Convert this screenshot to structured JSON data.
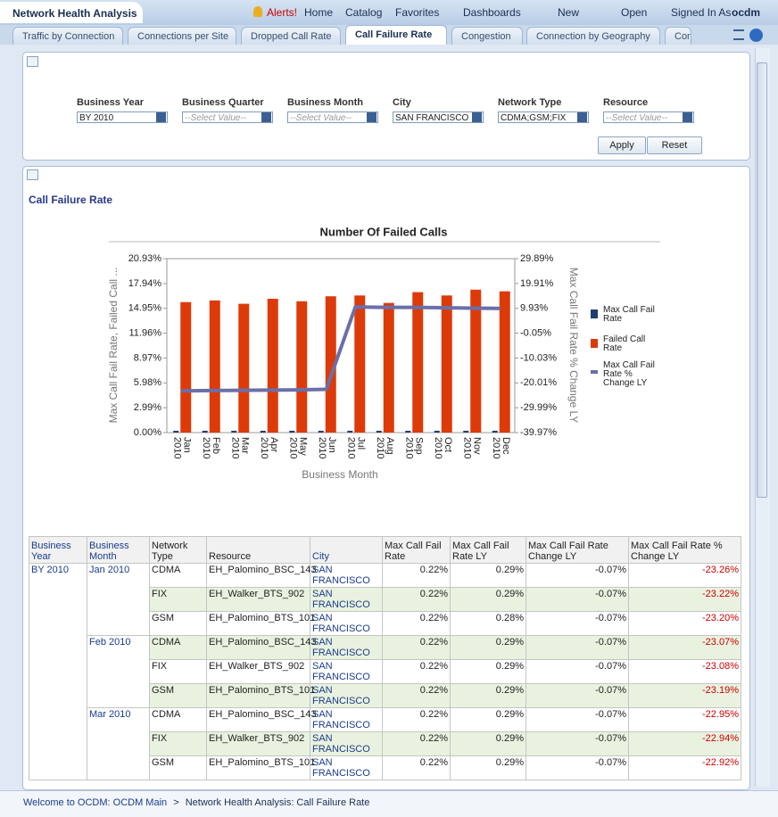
{
  "header": {
    "title": "Network Health Analysis",
    "alerts": "Alerts!",
    "menu": [
      "Home",
      "Catalog",
      "Favorites",
      "Dashboards",
      "New",
      "Open"
    ],
    "signed_in_label": "Signed In As",
    "user": "ocdm"
  },
  "tabs": [
    "Traffic by Connection",
    "Connections per Site",
    "Dropped Call Rate",
    "Call Failure Rate",
    "Congestion",
    "Connection by Geography",
    "Con"
  ],
  "active_tab": 3,
  "filters": [
    {
      "label": "Business Year",
      "value": "BY 2010"
    },
    {
      "label": "Business Quarter",
      "value": "--Select Value--"
    },
    {
      "label": "Business Month",
      "value": "--Select Value--"
    },
    {
      "label": "City",
      "value": "SAN FRANCISCO"
    },
    {
      "label": "Network Type",
      "value": "CDMA;GSM;FIX"
    },
    {
      "label": "Resource",
      "value": "--Select Value--"
    }
  ],
  "buttons": [
    "Apply",
    "Reset"
  ],
  "section_title": "Call Failure Rate",
  "chart_data": {
    "type": "bar",
    "title": "Number Of Failed Calls",
    "y_label": "Max Call Fail Rate, Failed  Call ...",
    "y2_label": "Max Call Fail Rate % Change LY",
    "x_label": "Business Month",
    "categories": [
      "Jan 2010",
      "Feb 2010",
      "Mar 2010",
      "Apr 2010",
      "May 2010",
      "Jun 2010",
      "Jul 2010",
      "Aug 2010",
      "Sep 2010",
      "Oct 2010",
      "Nov 2010",
      "Dec 2010"
    ],
    "ylim": [
      0,
      20.93
    ],
    "yticks": [
      {
        "value": 0,
        "label": "0.00%"
      },
      {
        "value": 2.99,
        "label": "2.99%"
      },
      {
        "value": 5.98,
        "label": "5.98%"
      },
      {
        "value": 8.97,
        "label": "8.97%"
      },
      {
        "value": 11.96,
        "label": "11.96%"
      },
      {
        "value": 14.95,
        "label": "14.95%"
      },
      {
        "value": 17.94,
        "label": "17.94%"
      },
      {
        "value": 20.93,
        "label": "20.93%"
      }
    ],
    "y2lim": [
      -39.97,
      29.89
    ],
    "y2ticks": [
      {
        "value": -39.97,
        "label": "-39.97%"
      },
      {
        "value": -29.99,
        "label": "-29.99%"
      },
      {
        "value": -20.01,
        "label": "-20.01%"
      },
      {
        "value": -10.03,
        "label": "-10.03%"
      },
      {
        "value": -0.05,
        "label": "-0.05%"
      },
      {
        "value": 9.93,
        "label": "9.93%"
      },
      {
        "value": 19.91,
        "label": "19.91%"
      },
      {
        "value": 29.89,
        "label": "29.89%"
      }
    ],
    "grid": false,
    "legend": "right",
    "series": [
      {
        "name": "Max Call Fail Rate",
        "color": "#1f3f73",
        "type": "bar",
        "values": [
          0.22,
          0.22,
          0.22,
          0.22,
          0.22,
          0.22,
          0.22,
          0.22,
          0.22,
          0.22,
          0.22,
          0.22
        ]
      },
      {
        "name": "Failed Call Rate",
        "color": "#dd3a0a",
        "type": "bar",
        "values": [
          15.7,
          15.9,
          15.5,
          16.1,
          15.8,
          16.4,
          16.5,
          15.6,
          16.9,
          16.5,
          17.2,
          17.0
        ]
      },
      {
        "name": "Max Call Fail Rate % Change LY",
        "color": "#6b6fa8",
        "type": "line",
        "axis": "y2",
        "values": [
          -23.2,
          -23.1,
          -23.0,
          -22.9,
          -22.8,
          -22.6,
          10.5,
          10.3,
          10.3,
          10.2,
          10.0,
          9.9
        ]
      }
    ]
  },
  "table": {
    "columns": [
      "Business Year",
      "Business Month",
      "Network Type",
      "Resource",
      "City",
      "Max Call Fail Rate",
      "Max Call Fail Rate LY",
      "Max Call Fail Rate Change LY",
      "Max Call Fail Rate % Change LY"
    ],
    "year": "BY 2010",
    "months": [
      {
        "month": "Jan 2010",
        "rows": [
          [
            "CDMA",
            "EH_Palomino_BSC_143",
            "SAN FRANCISCO",
            "0.22%",
            "0.29%",
            "-0.07%",
            "-23.26%"
          ],
          [
            "FIX",
            "EH_Walker_BTS_902",
            "SAN FRANCISCO",
            "0.22%",
            "0.29%",
            "-0.07%",
            "-23.22%"
          ],
          [
            "GSM",
            "EH_Palomino_BTS_101",
            "SAN FRANCISCO",
            "0.22%",
            "0.28%",
            "-0.07%",
            "-23.20%"
          ]
        ]
      },
      {
        "month": "Feb 2010",
        "rows": [
          [
            "CDMA",
            "EH_Palomino_BSC_143",
            "SAN FRANCISCO",
            "0.22%",
            "0.29%",
            "-0.07%",
            "-23.07%"
          ],
          [
            "FIX",
            "EH_Walker_BTS_902",
            "SAN FRANCISCO",
            "0.22%",
            "0.29%",
            "-0.07%",
            "-23.08%"
          ],
          [
            "GSM",
            "EH_Palomino_BTS_101",
            "SAN FRANCISCO",
            "0.22%",
            "0.29%",
            "-0.07%",
            "-23.19%"
          ]
        ]
      },
      {
        "month": "Mar 2010",
        "rows": [
          [
            "CDMA",
            "EH_Palomino_BSC_143",
            "SAN FRANCISCO",
            "0.22%",
            "0.29%",
            "-0.07%",
            "-22.95%"
          ],
          [
            "FIX",
            "EH_Walker_BTS_902",
            "SAN FRANCISCO",
            "0.22%",
            "0.29%",
            "-0.07%",
            "-22.94%"
          ],
          [
            "GSM",
            "EH_Palomino_BTS_101",
            "SAN FRANCISCO",
            "0.22%",
            "0.29%",
            "-0.07%",
            "-22.92%"
          ]
        ]
      }
    ]
  },
  "footer": {
    "breadcrumb": [
      "Welcome to OCDM: OCDM Main",
      "Network Health Analysis: Call Failure Rate"
    ],
    "separator": ">"
  }
}
